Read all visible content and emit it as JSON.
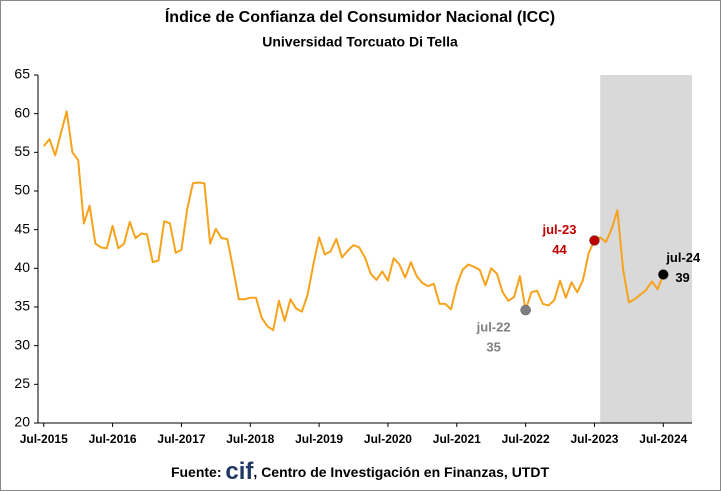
{
  "chart_data": {
    "type": "line",
    "title": "Índice de Confianza del Consumidor Nacional (ICC)",
    "subtitle": "Universidad Torcuato Di Tella",
    "source_prefix": "Fuente:",
    "source_logo": "cif",
    "source_rest": ", Centro de Investigación en Finanzas, UTDT",
    "x": [
      "2015-07",
      "2015-08",
      "2015-09",
      "2015-10",
      "2015-11",
      "2015-12",
      "2016-01",
      "2016-02",
      "2016-03",
      "2016-04",
      "2016-05",
      "2016-06",
      "2016-07",
      "2016-08",
      "2016-09",
      "2016-10",
      "2016-11",
      "2016-12",
      "2017-01",
      "2017-02",
      "2017-03",
      "2017-04",
      "2017-05",
      "2017-06",
      "2017-07",
      "2017-08",
      "2017-09",
      "2017-10",
      "2017-11",
      "2017-12",
      "2018-01",
      "2018-02",
      "2018-03",
      "2018-04",
      "2018-05",
      "2018-06",
      "2018-07",
      "2018-08",
      "2018-09",
      "2018-10",
      "2018-11",
      "2018-12",
      "2019-01",
      "2019-02",
      "2019-03",
      "2019-04",
      "2019-05",
      "2019-06",
      "2019-07",
      "2019-08",
      "2019-09",
      "2019-10",
      "2019-11",
      "2019-12",
      "2020-01",
      "2020-02",
      "2020-03",
      "2020-04",
      "2020-05",
      "2020-06",
      "2020-07",
      "2020-08",
      "2020-09",
      "2020-10",
      "2020-11",
      "2020-12",
      "2021-01",
      "2021-02",
      "2021-03",
      "2021-04",
      "2021-05",
      "2021-06",
      "2021-07",
      "2021-08",
      "2021-09",
      "2021-10",
      "2021-11",
      "2021-12",
      "2022-01",
      "2022-02",
      "2022-03",
      "2022-04",
      "2022-05",
      "2022-06",
      "2022-07",
      "2022-08",
      "2022-09",
      "2022-10",
      "2022-11",
      "2022-12",
      "2023-01",
      "2023-02",
      "2023-03",
      "2023-04",
      "2023-05",
      "2023-06",
      "2023-07",
      "2023-08",
      "2023-09",
      "2023-10",
      "2023-11",
      "2023-12",
      "2024-01",
      "2024-02",
      "2024-03",
      "2024-04",
      "2024-05",
      "2024-06",
      "2024-07"
    ],
    "series": [
      {
        "name": "ICC",
        "color": "#f7a21b",
        "values": [
          55.8,
          56.7,
          54.6,
          57.5,
          60.3,
          55.0,
          54.0,
          45.8,
          48.1,
          43.2,
          42.7,
          42.6,
          45.5,
          42.6,
          43.2,
          46.0,
          43.9,
          44.5,
          44.4,
          40.8,
          41.0,
          46.1,
          45.8,
          42.0,
          42.4,
          47.6,
          51.0,
          51.1,
          51.0,
          43.2,
          45.1,
          43.9,
          43.8,
          40.0,
          36.0,
          36.0,
          36.2,
          36.2,
          33.6,
          32.5,
          32.0,
          35.8,
          33.2,
          36.0,
          34.8,
          34.4,
          36.6,
          40.5,
          44.0,
          41.8,
          42.2,
          43.8,
          41.4,
          42.3,
          43.0,
          42.7,
          41.4,
          39.3,
          38.5,
          39.6,
          38.4,
          41.3,
          40.5,
          38.8,
          40.8,
          39.0,
          38.1,
          37.7,
          38.0,
          35.4,
          35.4,
          34.7,
          37.8,
          39.8,
          40.5,
          40.2,
          39.8,
          37.8,
          40.0,
          39.3,
          36.9,
          35.8,
          36.3,
          39.0,
          34.6,
          36.9,
          37.1,
          35.4,
          35.2,
          35.9,
          38.4,
          36.2,
          38.2,
          36.9,
          38.5,
          42.0,
          43.6,
          44.0,
          43.4,
          45.1,
          47.5,
          39.8,
          35.6,
          36.0,
          36.6,
          37.2,
          38.3,
          37.3,
          39.2
        ]
      }
    ],
    "annotations": [
      {
        "x": "2022-07",
        "text": "jul-22",
        "value_label": "35",
        "color": "#7f7f7f"
      },
      {
        "x": "2023-07",
        "text": "jul-23",
        "value_label": "44",
        "color": "#c00000"
      },
      {
        "x": "2024-07",
        "text": "jul-24",
        "value_label": "39",
        "color": "#000000"
      }
    ],
    "shade": {
      "from": "2023-08",
      "to": "2024-12",
      "color": "#d9d9d9"
    },
    "xlim": [
      "2015-06",
      "2024-12"
    ],
    "xticks": [
      {
        "value": "2015-07",
        "label": "Jul-2015"
      },
      {
        "value": "2016-07",
        "label": "Jul-2016"
      },
      {
        "value": "2017-07",
        "label": "Jul-2017"
      },
      {
        "value": "2018-07",
        "label": "Jul-2018"
      },
      {
        "value": "2019-07",
        "label": "Jul-2019"
      },
      {
        "value": "2020-07",
        "label": "Jul-2020"
      },
      {
        "value": "2021-07",
        "label": "Jul-2021"
      },
      {
        "value": "2022-07",
        "label": "Jul-2022"
      },
      {
        "value": "2023-07",
        "label": "Jul-2023"
      },
      {
        "value": "2024-07",
        "label": "Jul-2024"
      }
    ],
    "ylim": [
      20,
      65
    ],
    "yticks": [
      20,
      25,
      30,
      35,
      40,
      45,
      50,
      55,
      60,
      65
    ],
    "grid": false
  }
}
